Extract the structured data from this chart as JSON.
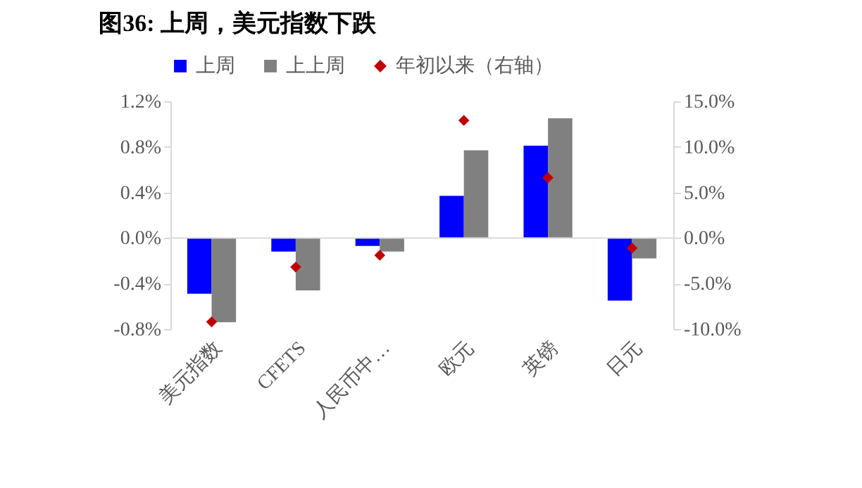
{
  "chart_data": {
    "type": "bar",
    "title": "图36:  上周，美元指数下跌",
    "categories": [
      "美元指数",
      "CFETS",
      "人民币中…",
      "欧元",
      "英镑",
      "日元"
    ],
    "series": [
      {
        "name": "上周",
        "color": "#0000ff",
        "values": [
          -0.49,
          -0.12,
          -0.07,
          0.37,
          0.81,
          -0.55
        ]
      },
      {
        "name": "上上周",
        "color": "#808080",
        "values": [
          -0.74,
          -0.46,
          -0.12,
          0.77,
          1.05,
          -0.18
        ]
      },
      {
        "name": "年初以来（右轴）",
        "type": "scatter",
        "axis": "y2",
        "marker": "diamond",
        "color": "#c00000",
        "values": [
          -9.2,
          -3.2,
          -1.9,
          12.9,
          6.6,
          -1.1
        ]
      }
    ],
    "ylim": [
      -0.8,
      1.2
    ],
    "yticks": [
      {
        "value": -0.8,
        "label": "-0.8%"
      },
      {
        "value": -0.4,
        "label": "-0.4%"
      },
      {
        "value": 0,
        "label": "0.0%"
      },
      {
        "value": 0.4,
        "label": "0.4%"
      },
      {
        "value": 0.8,
        "label": "0.8%"
      },
      {
        "value": 1.2,
        "label": "1.2%"
      }
    ],
    "y2lim": [
      -10,
      15
    ],
    "y2ticks": [
      {
        "value": -10,
        "label": "-10.0%"
      },
      {
        "value": -5,
        "label": "-5.0%"
      },
      {
        "value": 0,
        "label": "0.0%"
      },
      {
        "value": 5,
        "label": "5.0%"
      },
      {
        "value": 10,
        "label": "10.0%"
      },
      {
        "value": 15,
        "label": "15.0%"
      }
    ],
    "ref_lines": [
      {
        "axis": "y",
        "value": 0,
        "color": "#d9d9d9"
      }
    ],
    "legend": "top"
  }
}
